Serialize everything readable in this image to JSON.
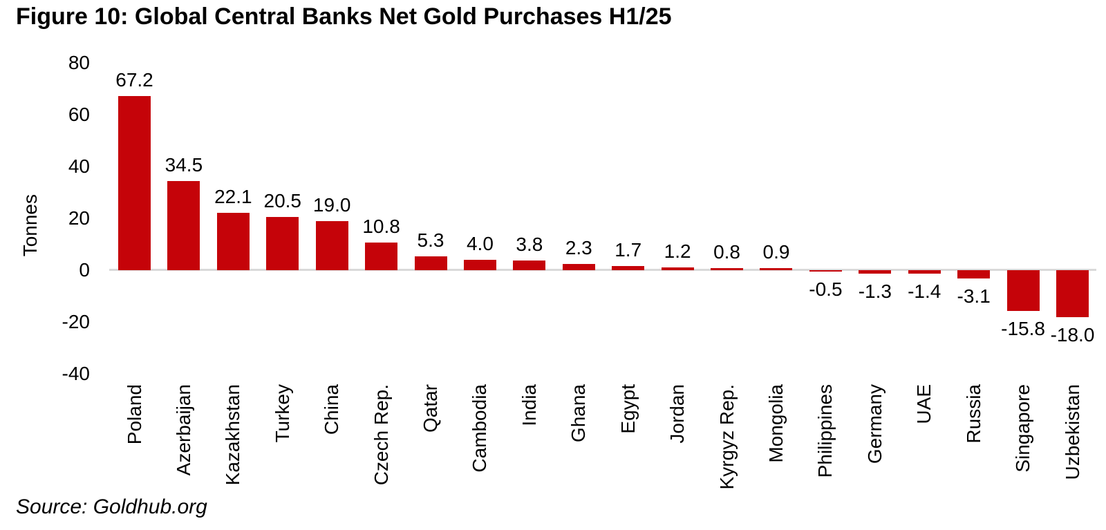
{
  "chart_data": {
    "type": "bar",
    "title": "Figure 10: Global Central Banks Net Gold Purchases H1/25",
    "ylabel": "Tonnes",
    "xlabel": "",
    "source": "Source: Goldhub.org",
    "categories": [
      "Poland",
      "Azerbaijan",
      "Kazakhstan",
      "Turkey",
      "China",
      "Czech Rep.",
      "Qatar",
      "Cambodia",
      "India",
      "Ghana",
      "Egypt",
      "Jordan",
      "Kyrgyz Rep.",
      "Mongolia",
      "Philippines",
      "Germany",
      "UAE",
      "Russia",
      "Singapore",
      "Uzbekistan"
    ],
    "values": [
      67.2,
      34.5,
      22.1,
      20.5,
      19.0,
      10.8,
      5.3,
      4.0,
      3.8,
      2.3,
      1.7,
      1.2,
      0.8,
      0.9,
      -0.5,
      -1.3,
      -1.4,
      -3.1,
      -15.8,
      -18.0
    ],
    "value_labels": [
      "67.2",
      "34.5",
      "22.1",
      "20.5",
      "19.0",
      "10.8",
      "5.3",
      "4.0",
      "3.8",
      "2.3",
      "1.7",
      "1.2",
      "0.8",
      "0.9",
      "-0.5",
      "-1.3",
      "-1.4",
      "-3.1",
      "-15.8",
      "-18.0"
    ],
    "yticks": [
      80,
      60,
      40,
      20,
      0,
      -20,
      -40
    ],
    "ylim": [
      -40,
      80
    ],
    "grid": false,
    "legend_position": "none",
    "bar_color": "#c50309",
    "axis_line_color": "#d9d9d9",
    "text_color": "#000000",
    "background_color": "#ffffff"
  }
}
